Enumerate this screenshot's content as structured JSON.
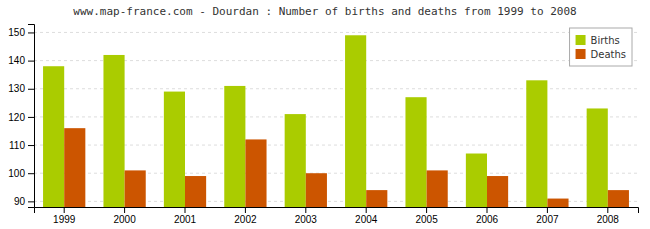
{
  "chart_data": {
    "type": "bar",
    "title": "www.map-france.com - Dourdan : Number of births and deaths from 1999 to 2008",
    "categories": [
      "1999",
      "2000",
      "2001",
      "2002",
      "2003",
      "2004",
      "2005",
      "2006",
      "2007",
      "2008"
    ],
    "series": [
      {
        "name": "Births",
        "color": "#aacc00",
        "values": [
          138,
          142,
          129,
          131,
          121,
          149,
          127,
          107,
          133,
          123
        ]
      },
      {
        "name": "Deaths",
        "color": "#cc5500",
        "values": [
          116,
          101,
          99,
          112,
          100,
          94,
          101,
          99,
          91,
          94
        ]
      }
    ],
    "ylim": [
      88,
      153
    ],
    "yticks": [
      90,
      100,
      110,
      120,
      130,
      140,
      150
    ],
    "grid": true,
    "legend": "upper right"
  }
}
